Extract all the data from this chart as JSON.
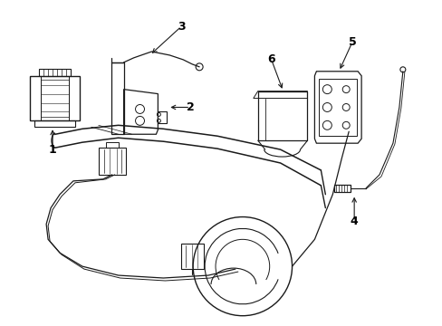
{
  "background_color": "#ffffff",
  "line_color": "#1a1a1a",
  "fig_width": 4.89,
  "fig_height": 3.6,
  "dpi": 100,
  "label_fontsize": 9
}
